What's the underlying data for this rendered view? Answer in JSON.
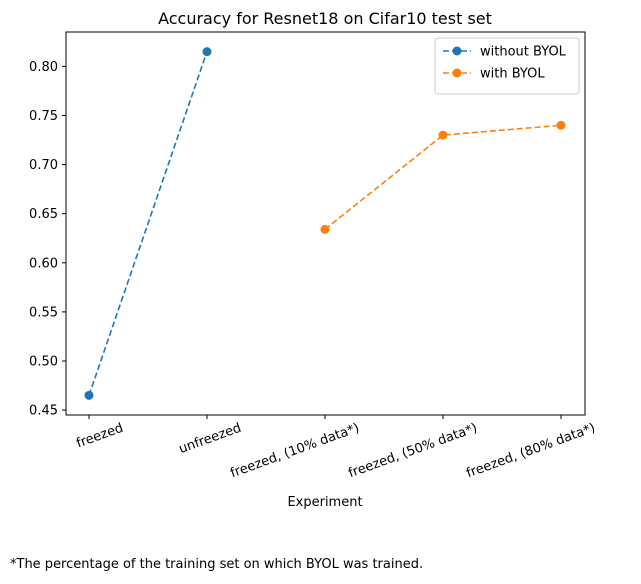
{
  "chart_data": {
    "type": "line",
    "title": "Accuracy for Resnet18 on Cifar10 test set",
    "xlabel": "Experiment",
    "ylabel": "",
    "categories": [
      "freezed",
      "unfreezed",
      "freezed, (10% data*)",
      "freezed, (50% data*)",
      "freezed, (80% data*)"
    ],
    "ylim": [
      0.445,
      0.835
    ],
    "yticks": [
      "0.45",
      "0.50",
      "0.55",
      "0.60",
      "0.65",
      "0.70",
      "0.75",
      "0.80"
    ],
    "grid": false,
    "legend_position": "top-right",
    "series": [
      {
        "name": "without BYOL",
        "color": "#1f77b4",
        "line_style": "dashed",
        "marker": "circle",
        "values": [
          0.465,
          0.815,
          null,
          null,
          null
        ]
      },
      {
        "name": "with BYOL",
        "color": "#ff7f0e",
        "line_style": "dashed",
        "marker": "circle",
        "values": [
          null,
          null,
          0.634,
          0.73,
          0.74
        ]
      }
    ]
  },
  "footnote": "*The percentage of the training set on which BYOL was trained."
}
